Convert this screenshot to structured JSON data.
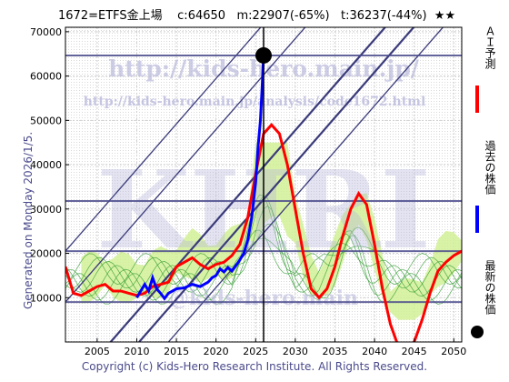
{
  "header": {
    "title": "1672=ETFS金上場    c:64650   m:22907(-65%)   t:36237(-44%)  ★★"
  },
  "side": {
    "generated": "Generated on Monday 2026/1/5."
  },
  "footer": {
    "copyright": "Copyright (c) Kids-Hero Research Institute. All Rights Reserved."
  },
  "watermark": {
    "url": "http://kids-hero.main.jp/",
    "analysis_url": "http://kids-hero.main.jp/analysis/code1672.html",
    "big": "KHRI",
    "bottom": "@kids-hero.main"
  },
  "legend": {
    "items": [
      {
        "label": "ＡＩ予測",
        "color": "#ff0000"
      },
      {
        "label": "過去の株価",
        "color": "#0000ff"
      },
      {
        "label": "最新の株価",
        "color": "#000000"
      }
    ]
  },
  "chart_data": {
    "type": "line",
    "xlim": [
      2001,
      2051
    ],
    "ylim": [
      0,
      71000
    ],
    "xticks": [
      2005,
      2010,
      2015,
      2020,
      2025,
      2030,
      2035,
      2040,
      2045,
      2050
    ],
    "yticks": [
      10000,
      20000,
      30000,
      40000,
      50000,
      60000,
      70000
    ],
    "hlines": [
      64650,
      31800,
      20500,
      9000
    ],
    "vline": 2026,
    "latest_point": {
      "x": 2026,
      "y": 64650
    },
    "series": [
      {
        "name": "過去の株価",
        "color": "#0000ff",
        "x": [
          2010.0,
          2010.5,
          2011.0,
          2011.5,
          2012.0,
          2012.5,
          2013.0,
          2013.5,
          2014.0,
          2015.0,
          2016.0,
          2017.0,
          2018.0,
          2019.0,
          2019.5,
          2020.0,
          2020.5,
          2021.0,
          2021.5,
          2022.0,
          2022.5,
          2023.0,
          2023.5,
          2024.0,
          2024.5,
          2025.0,
          2025.3,
          2025.6,
          2025.8,
          2026.0
        ],
        "y": [
          10000,
          11500,
          13000,
          11500,
          14500,
          12000,
          11000,
          9800,
          11000,
          12000,
          12200,
          13000,
          12500,
          13500,
          14500,
          15000,
          16500,
          15800,
          16800,
          16000,
          17200,
          18500,
          20000,
          23000,
          28000,
          36000,
          44000,
          50000,
          57000,
          64650
        ]
      },
      {
        "name": "ＡＩ予測",
        "color": "#ff0000",
        "x": [
          2001,
          2002,
          2003,
          2004,
          2005,
          2006,
          2007,
          2008,
          2009,
          2010,
          2011,
          2012,
          2013,
          2014,
          2015,
          2016,
          2017,
          2018,
          2019,
          2020,
          2021,
          2022,
          2023,
          2024,
          2025,
          2026,
          2027,
          2028,
          2029,
          2030,
          2031,
          2032,
          2033,
          2034,
          2035,
          2036,
          2037,
          2038,
          2039,
          2040,
          2041,
          2042,
          2043,
          2044,
          2045,
          2046,
          2047,
          2048,
          2049,
          2050,
          2051
        ],
        "y": [
          17000,
          11000,
          10500,
          11500,
          12500,
          13000,
          11500,
          11500,
          11000,
          10500,
          11000,
          12500,
          13000,
          13500,
          17000,
          18000,
          19000,
          17500,
          16500,
          17500,
          18000,
          19500,
          22000,
          28000,
          38000,
          47000,
          49000,
          47000,
          40000,
          30000,
          20000,
          12000,
          10000,
          12000,
          17000,
          24000,
          30000,
          33500,
          31000,
          22000,
          12000,
          4000,
          -1000,
          -4000,
          0,
          5000,
          11000,
          16000,
          18000,
          19500,
          20500
        ]
      }
    ]
  }
}
